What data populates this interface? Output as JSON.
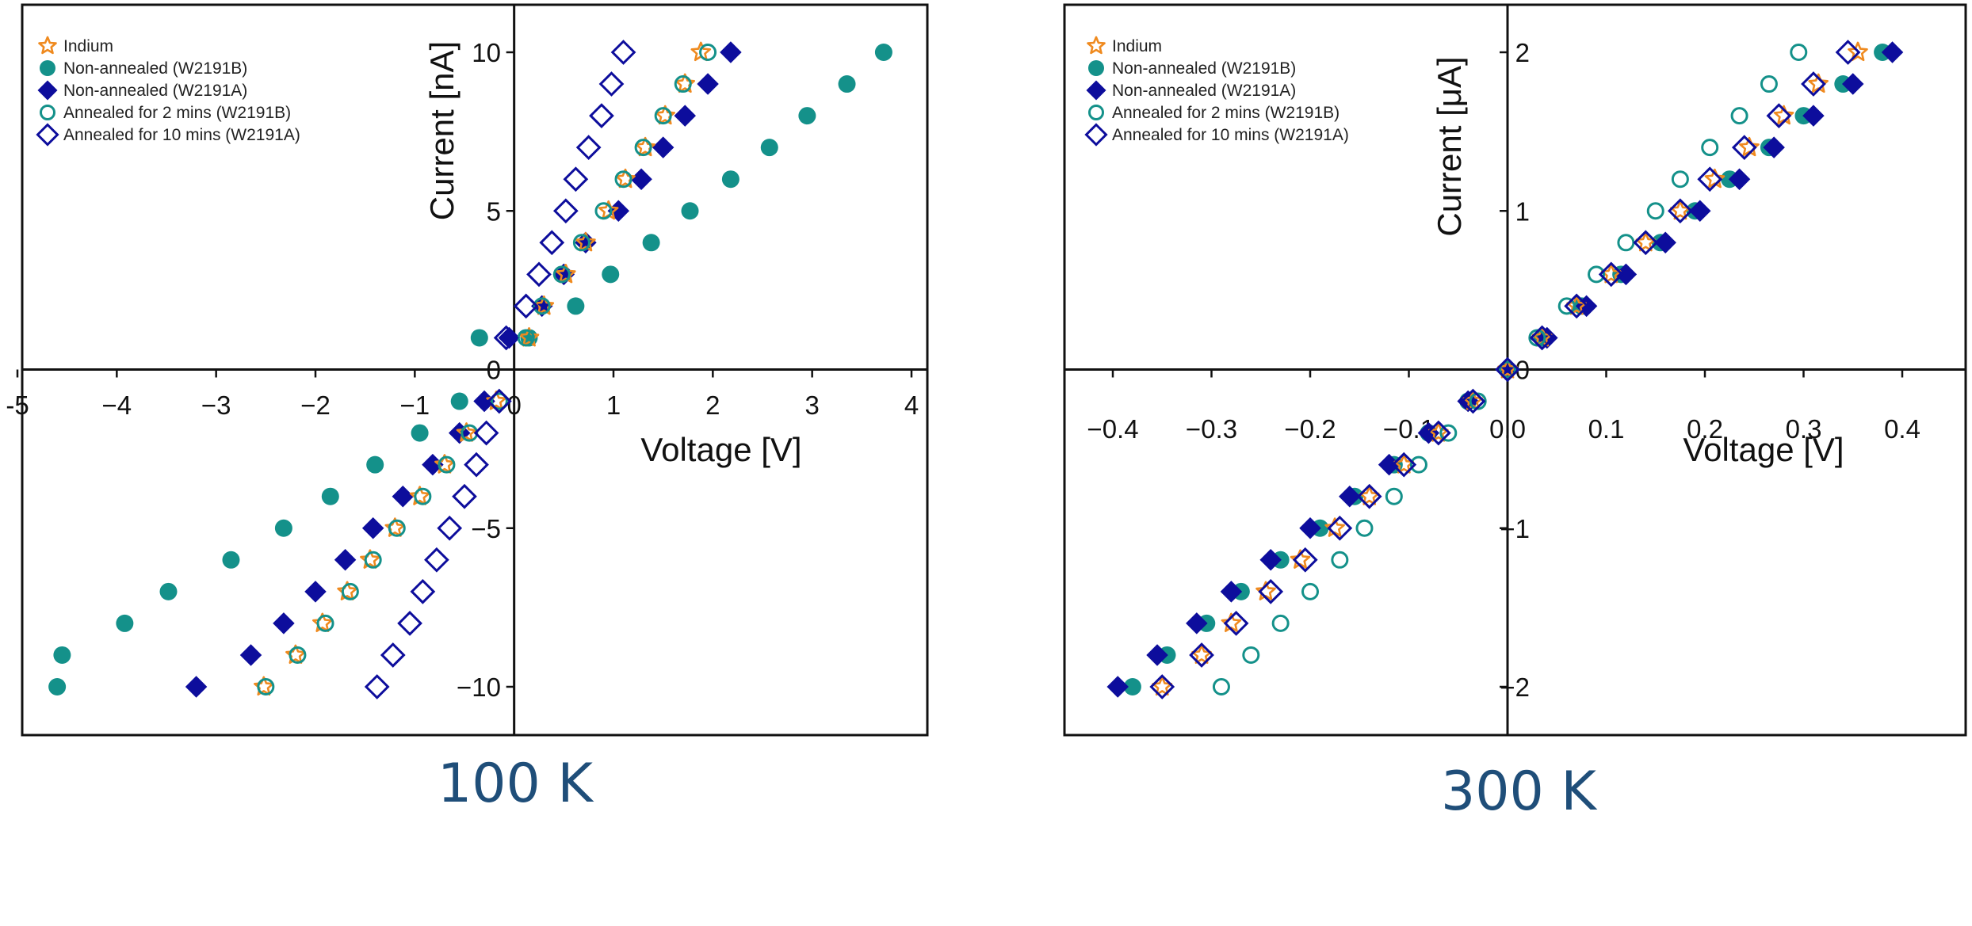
{
  "captions": [
    "100 K",
    "300 K"
  ],
  "legend_entries": [
    {
      "label": "Indium",
      "marker": "star-open",
      "color": "#ef8a1f"
    },
    {
      "label": "Non-annealed (W2191B)",
      "marker": "circle-filled",
      "color": "#14918a"
    },
    {
      "label": "Non-annealed (W2191A)",
      "marker": "diamond-filled",
      "color": "#0d0d9c"
    },
    {
      "label": "Annealed for 2 mins (W2191B)",
      "marker": "circle-open",
      "color": "#14918a"
    },
    {
      "label": "Annealed for 10 mins (W2191A)",
      "marker": "diamond-open",
      "color": "#0d0d9c"
    }
  ],
  "chart_data": [
    {
      "type": "scatter",
      "title": "100 K",
      "xlabel": "Voltage [V]",
      "ylabel": "Current [nA]",
      "xlim": [
        -5,
        4.1
      ],
      "ylim": [
        -11.5,
        11.5
      ],
      "xticks": [
        -5,
        -4,
        -3,
        -2,
        -1,
        0,
        1,
        2,
        3,
        4
      ],
      "xtick_labels": [
        "-5",
        "−4",
        "−3",
        "−2",
        "−1",
        "0",
        "1",
        "2",
        "3",
        "4"
      ],
      "yticks": [
        -10,
        -5,
        0,
        5,
        10
      ],
      "ytick_labels": [
        "−10",
        "−5",
        "0",
        "5",
        "10"
      ],
      "grid": false,
      "legend": "top-left",
      "series": [
        {
          "name": "Indium",
          "x": [
            -2.52,
            -2.2,
            -1.93,
            -1.68,
            -1.45,
            -1.2,
            -0.95,
            -0.7,
            -0.48,
            -0.18,
            0.15,
            0.3,
            0.52,
            0.72,
            0.95,
            1.12,
            1.32,
            1.52,
            1.72,
            1.88
          ],
          "y": [
            -10,
            -9,
            -8,
            -7,
            -6,
            -5,
            -4,
            -3,
            -2,
            -1,
            1,
            2,
            3,
            4,
            5,
            6,
            7,
            8,
            9,
            10
          ]
        },
        {
          "name": "Non-annealed (W2191B)",
          "x": [
            -4.6,
            -4.55,
            -3.92,
            -3.48,
            -2.85,
            -2.32,
            -1.85,
            -1.4,
            -0.95,
            -0.55,
            -0.35,
            0.15,
            0.62,
            0.97,
            1.38,
            1.77,
            2.18,
            2.57,
            2.95,
            3.35,
            3.72
          ],
          "y": [
            -10,
            -9,
            -8,
            -7,
            -6,
            -5,
            -4,
            -3,
            -2,
            -1,
            1,
            1,
            2,
            3,
            4,
            5,
            6,
            7,
            8,
            9,
            10
          ]
        },
        {
          "name": "Non-annealed (W2191A)",
          "x": [
            -3.2,
            -2.65,
            -2.32,
            -2.0,
            -1.7,
            -1.42,
            -1.12,
            -0.82,
            -0.55,
            -0.3,
            -0.05,
            0.28,
            0.5,
            0.72,
            1.05,
            1.28,
            1.5,
            1.72,
            1.95,
            2.18
          ],
          "y": [
            -10,
            -9,
            -8,
            -7,
            -6,
            -5,
            -4,
            -3,
            -2,
            -1,
            1,
            2,
            3,
            4,
            5,
            6,
            7,
            8,
            9,
            10
          ]
        },
        {
          "name": "Annealed for 2 mins (W2191B)",
          "x": [
            -2.5,
            -2.18,
            -1.9,
            -1.65,
            -1.42,
            -1.18,
            -0.92,
            -0.68,
            -0.45,
            -0.15,
            0.12,
            0.28,
            0.48,
            0.68,
            0.9,
            1.1,
            1.3,
            1.5,
            1.7,
            1.95
          ],
          "y": [
            -10,
            -9,
            -8,
            -7,
            -6,
            -5,
            -4,
            -3,
            -2,
            -1,
            1,
            2,
            3,
            4,
            5,
            6,
            7,
            8,
            9,
            10
          ]
        },
        {
          "name": "Annealed for 10 mins (W2191A)",
          "x": [
            -1.38,
            -1.22,
            -1.05,
            -0.92,
            -0.78,
            -0.65,
            -0.5,
            -0.38,
            -0.28,
            -0.15,
            -0.08,
            0.12,
            0.25,
            0.38,
            0.52,
            0.62,
            0.75,
            0.88,
            0.98,
            1.1
          ],
          "y": [
            -10,
            -9,
            -8,
            -7,
            -6,
            -5,
            -4,
            -3,
            -2,
            -1,
            1,
            2,
            3,
            4,
            5,
            6,
            7,
            8,
            9,
            10
          ]
        }
      ]
    },
    {
      "type": "scatter",
      "title": "300 K",
      "xlabel": "Voltage [V]",
      "ylabel": "Current [μA]",
      "xlim": [
        -0.46,
        0.46
      ],
      "ylim": [
        -2.3,
        2.3
      ],
      "xticks": [
        -0.4,
        -0.3,
        -0.2,
        -0.1,
        0.0,
        0.1,
        0.2,
        0.3,
        0.4
      ],
      "xtick_labels": [
        "−0.4",
        "−0.3",
        "−0.2",
        "−0.1",
        "0.0",
        "0.1",
        "0.2",
        "0.3",
        "0.4"
      ],
      "yticks": [
        -2,
        -1,
        0,
        1,
        2
      ],
      "ytick_labels": [
        "−2",
        "−1",
        "0",
        "1",
        "2"
      ],
      "grid": false,
      "legend": "top-left",
      "series": [
        {
          "name": "Indium",
          "x": [
            -0.35,
            -0.31,
            -0.28,
            -0.245,
            -0.21,
            -0.175,
            -0.14,
            -0.105,
            -0.07,
            -0.035,
            0.0,
            0.035,
            0.07,
            0.105,
            0.14,
            0.175,
            0.21,
            0.245,
            0.28,
            0.315,
            0.355
          ],
          "y": [
            -2.0,
            -1.8,
            -1.6,
            -1.4,
            -1.2,
            -1.0,
            -0.8,
            -0.6,
            -0.4,
            -0.2,
            0.0,
            0.2,
            0.4,
            0.6,
            0.8,
            1.0,
            1.2,
            1.4,
            1.6,
            1.8,
            2.0
          ]
        },
        {
          "name": "Non-annealed (W2191B)",
          "x": [
            -0.38,
            -0.345,
            -0.305,
            -0.27,
            -0.23,
            -0.19,
            -0.155,
            -0.115,
            -0.08,
            -0.04,
            0.0,
            0.035,
            0.075,
            0.115,
            0.155,
            0.19,
            0.225,
            0.265,
            0.3,
            0.34,
            0.38
          ],
          "y": [
            -2.0,
            -1.8,
            -1.6,
            -1.4,
            -1.2,
            -1.0,
            -0.8,
            -0.6,
            -0.4,
            -0.2,
            0.0,
            0.2,
            0.4,
            0.6,
            0.8,
            1.0,
            1.2,
            1.4,
            1.6,
            1.8,
            2.0
          ]
        },
        {
          "name": "Non-annealed (W2191A)",
          "x": [
            -0.395,
            -0.355,
            -0.315,
            -0.28,
            -0.24,
            -0.2,
            -0.16,
            -0.12,
            -0.08,
            -0.04,
            0.0,
            0.04,
            0.08,
            0.12,
            0.16,
            0.195,
            0.235,
            0.27,
            0.31,
            0.35,
            0.39
          ],
          "y": [
            -2.0,
            -1.8,
            -1.6,
            -1.4,
            -1.2,
            -1.0,
            -0.8,
            -0.6,
            -0.4,
            -0.2,
            0.0,
            0.2,
            0.4,
            0.6,
            0.8,
            1.0,
            1.2,
            1.4,
            1.6,
            1.8,
            2.0
          ]
        },
        {
          "name": "Annealed for 2 mins (W2191B)",
          "x": [
            -0.29,
            -0.26,
            -0.23,
            -0.2,
            -0.17,
            -0.145,
            -0.115,
            -0.09,
            -0.06,
            -0.03,
            0.0,
            0.03,
            0.06,
            0.09,
            0.12,
            0.15,
            0.175,
            0.205,
            0.235,
            0.265,
            0.295
          ],
          "y": [
            -2.0,
            -1.8,
            -1.6,
            -1.4,
            -1.2,
            -1.0,
            -0.8,
            -0.6,
            -0.4,
            -0.2,
            0.0,
            0.2,
            0.4,
            0.6,
            0.8,
            1.0,
            1.2,
            1.4,
            1.6,
            1.8,
            2.0
          ]
        },
        {
          "name": "Annealed for 10 mins (W2191A)",
          "x": [
            -0.35,
            -0.31,
            -0.275,
            -0.24,
            -0.205,
            -0.17,
            -0.14,
            -0.105,
            -0.07,
            -0.035,
            0.0,
            0.035,
            0.07,
            0.105,
            0.14,
            0.175,
            0.205,
            0.24,
            0.275,
            0.31,
            0.345
          ],
          "y": [
            -2.0,
            -1.8,
            -1.6,
            -1.4,
            -1.2,
            -1.0,
            -0.8,
            -0.6,
            -0.4,
            -0.2,
            0.0,
            0.2,
            0.4,
            0.6,
            0.8,
            1.0,
            1.2,
            1.4,
            1.6,
            1.8,
            2.0
          ]
        }
      ]
    }
  ]
}
